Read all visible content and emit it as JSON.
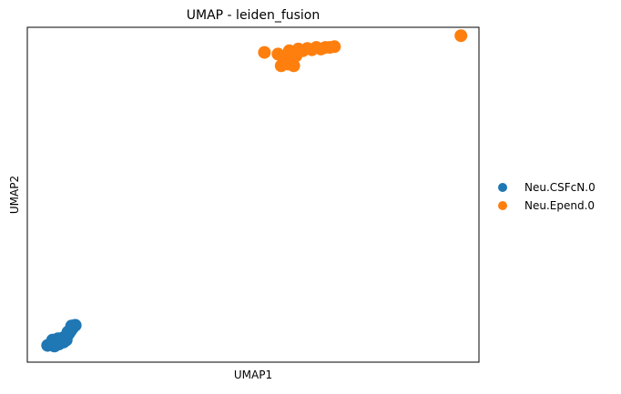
{
  "chart_data": {
    "type": "scatter",
    "title": "UMAP - leiden_fusion",
    "xlabel": "UMAP1",
    "ylabel": "UMAP2",
    "xlim": [
      0,
      100
    ],
    "ylim": [
      0,
      100
    ],
    "legend_position": "right",
    "grid": false,
    "series": [
      {
        "name": "Neu.CSFcN.0",
        "color": "#1f77b4",
        "points": [
          [
            4.5,
            5.0
          ],
          [
            5.2,
            5.6
          ],
          [
            6.0,
            4.8
          ],
          [
            6.4,
            6.2
          ],
          [
            7.0,
            5.4
          ],
          [
            7.3,
            6.8
          ],
          [
            8.0,
            6.0
          ],
          [
            8.2,
            7.4
          ],
          [
            8.8,
            7.8
          ],
          [
            9.2,
            8.6
          ],
          [
            9.6,
            9.4
          ],
          [
            10.0,
            10.2
          ],
          [
            10.6,
            11.0
          ],
          [
            5.6,
            6.6
          ],
          [
            6.8,
            7.0
          ],
          [
            7.8,
            7.2
          ],
          [
            8.6,
            6.6
          ],
          [
            9.0,
            9.0
          ],
          [
            9.8,
            10.8
          ],
          [
            6.2,
            5.2
          ]
        ]
      },
      {
        "name": "Neu.Epend.0",
        "color": "#ff7f0e",
        "points": [
          [
            52.5,
            92.5
          ],
          [
            55.5,
            92.0
          ],
          [
            56.2,
            88.5
          ],
          [
            57.0,
            90.5
          ],
          [
            57.8,
            89.0
          ],
          [
            58.5,
            91.5
          ],
          [
            58.0,
            93.0
          ],
          [
            59.0,
            88.5
          ],
          [
            60.0,
            93.5
          ],
          [
            61.0,
            93.0
          ],
          [
            62.0,
            93.7
          ],
          [
            63.0,
            93.3
          ],
          [
            64.0,
            94.0
          ],
          [
            65.0,
            93.5
          ],
          [
            66.0,
            94.0
          ],
          [
            67.0,
            94.0
          ],
          [
            68.0,
            94.2
          ],
          [
            59.5,
            91.5
          ],
          [
            96.0,
            97.5
          ]
        ]
      }
    ]
  }
}
